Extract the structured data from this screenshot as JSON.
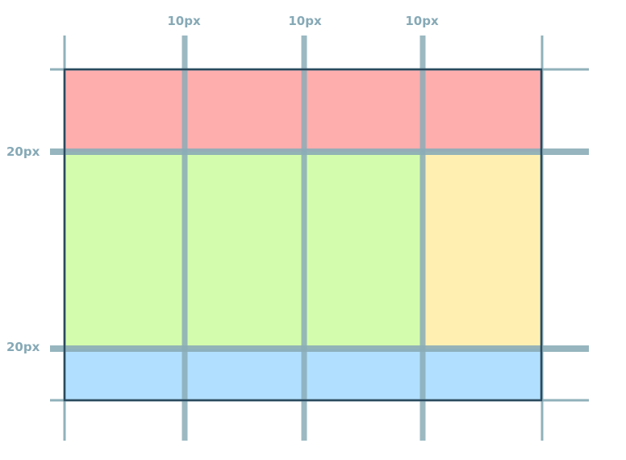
{
  "column_gap_labels": [
    "10px",
    "10px",
    "10px"
  ],
  "row_gap_labels": [
    "20px",
    "20px"
  ],
  "colors": {
    "header_area": "#ffaeae",
    "main_area": "#d4fcad",
    "sidebar_area": "#fff0b2",
    "footer_area": "#b1dfff",
    "grid_line": "#8badb8",
    "border": "#2a4a5e"
  }
}
